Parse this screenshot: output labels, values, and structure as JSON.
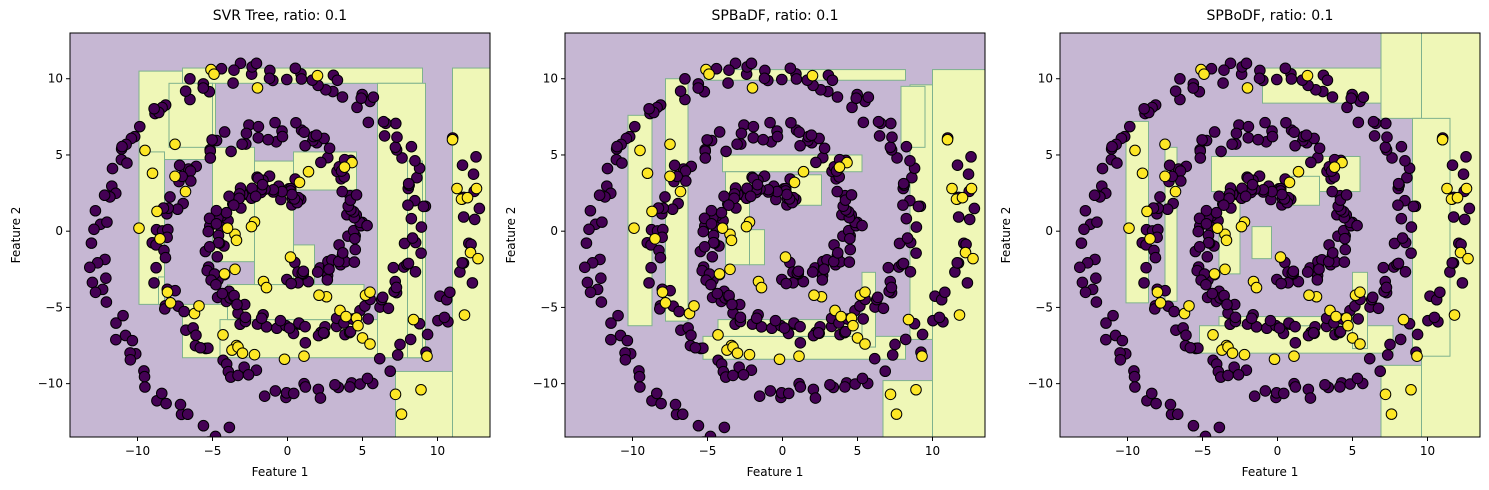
{
  "figure": {
    "colors": {
      "class0_region": "#c6b7d3",
      "class1_region": "#eff7b7",
      "class0_point": "#440154",
      "class1_point": "#fde725",
      "boundary": "#7fb28e",
      "point_edge": "#000000"
    }
  },
  "chart_data": [
    {
      "type": "scatter",
      "title": "SVR Tree, ratio: 0.1",
      "xlabel": "Feature 1",
      "ylabel": "Feature 2",
      "xlim": [
        -14.5,
        13.5
      ],
      "ylim": [
        -13.5,
        13.0
      ],
      "xticks": [
        -10,
        -5,
        0,
        5,
        10
      ],
      "yticks": [
        -10,
        -5,
        0,
        5,
        10
      ],
      "xticklabels": [
        "−10",
        "−5",
        "0",
        "5",
        "10"
      ],
      "yticklabels": [
        "−10",
        "−5",
        "0",
        "5",
        "10"
      ],
      "legend": "none",
      "series": [
        {
          "class": 0,
          "points": "spiral-arms"
        },
        {
          "class": 1,
          "points": [
            [
              -9.9,
              0.2
            ],
            [
              -9.5,
              5.3
            ],
            [
              -9.0,
              3.8
            ],
            [
              -8.7,
              1.3
            ],
            [
              -8.5,
              -0.5
            ],
            [
              -8.0,
              -4.0
            ],
            [
              -7.8,
              -4.7
            ],
            [
              -7.5,
              5.7
            ],
            [
              -7.5,
              3.6
            ],
            [
              -6.8,
              2.6
            ],
            [
              -6.2,
              -5.4
            ],
            [
              -5.9,
              -4.9
            ],
            [
              -5.1,
              10.6
            ],
            [
              -4.9,
              10.3
            ],
            [
              -4.3,
              -6.8
            ],
            [
              -3.4,
              -7.5
            ],
            [
              -3.7,
              -7.8
            ],
            [
              -3.3,
              -7.6
            ],
            [
              -3.0,
              -8.0
            ],
            [
              -2.2,
              -8.1
            ],
            [
              -0.2,
              -8.4
            ],
            [
              1.1,
              -8.2
            ],
            [
              -2.0,
              9.4
            ],
            [
              2.0,
              10.2
            ],
            [
              4.3,
              4.5
            ],
            [
              3.8,
              4.2
            ],
            [
              1.4,
              3.9
            ],
            [
              0.8,
              3.2
            ],
            [
              0.2,
              -1.7
            ],
            [
              -2.2,
              0.6
            ],
            [
              -2.4,
              0.3
            ],
            [
              -3.5,
              -0.2
            ],
            [
              -3.4,
              -0.6
            ],
            [
              -4.0,
              0.2
            ],
            [
              -4.2,
              -2.8
            ],
            [
              -3.5,
              -2.5
            ],
            [
              -1.6,
              -3.3
            ],
            [
              -1.4,
              -3.7
            ],
            [
              2.6,
              -4.3
            ],
            [
              2.1,
              -4.2
            ],
            [
              3.5,
              -5.2
            ],
            [
              3.9,
              -5.6
            ],
            [
              4.6,
              -5.7
            ],
            [
              5.2,
              -4.2
            ],
            [
              5.5,
              -4.0
            ],
            [
              5.0,
              -7.0
            ],
            [
              5.5,
              -7.4
            ],
            [
              4.7,
              -6.2
            ],
            [
              7.2,
              -10.7
            ],
            [
              7.6,
              -12.0
            ],
            [
              8.9,
              -10.4
            ],
            [
              9.3,
              -8.2
            ],
            [
              8.4,
              -5.8
            ],
            [
              11.0,
              6.0
            ],
            [
              11.3,
              2.8
            ],
            [
              11.6,
              2.1
            ],
            [
              12.0,
              2.2
            ],
            [
              12.6,
              2.8
            ],
            [
              11.8,
              -5.5
            ],
            [
              12.2,
              -1.4
            ],
            [
              12.7,
              -1.8
            ]
          ]
        }
      ]
    },
    {
      "type": "scatter",
      "title": "SPBaDF, ratio: 0.1",
      "xlabel": "Feature 1",
      "ylabel": "Feature 2",
      "xlim": [
        -14.5,
        13.5
      ],
      "ylim": [
        -13.5,
        13.0
      ],
      "xticks": [
        -10,
        -5,
        0,
        5,
        10
      ],
      "yticks": [
        -10,
        -5,
        0,
        5,
        10
      ],
      "xticklabels": [
        "−10",
        "−5",
        "0",
        "5",
        "10"
      ],
      "yticklabels": [
        "−10",
        "−5",
        "0",
        "5",
        "10"
      ],
      "legend": "none",
      "series": [
        {
          "class": 0,
          "points": "spiral-arms"
        },
        {
          "class": 1,
          "points": "same-as-panel-1"
        }
      ]
    },
    {
      "type": "scatter",
      "title": "SPBoDF, ratio: 0.1",
      "xlabel": "Feature 1",
      "ylabel": "Feature 2",
      "xlim": [
        -14.5,
        13.5
      ],
      "ylim": [
        -13.5,
        13.0
      ],
      "xticks": [
        -10,
        -5,
        0,
        5,
        10
      ],
      "yticks": [
        -10,
        -5,
        0,
        5,
        10
      ],
      "xticklabels": [
        "−10",
        "−5",
        "0",
        "5",
        "10"
      ],
      "yticklabels": [
        "−10",
        "−5",
        "0",
        "5",
        "10"
      ],
      "legend": "none",
      "series": [
        {
          "class": 0,
          "points": "spiral-arms"
        },
        {
          "class": 1,
          "points": "same-as-panel-1"
        }
      ]
    }
  ]
}
